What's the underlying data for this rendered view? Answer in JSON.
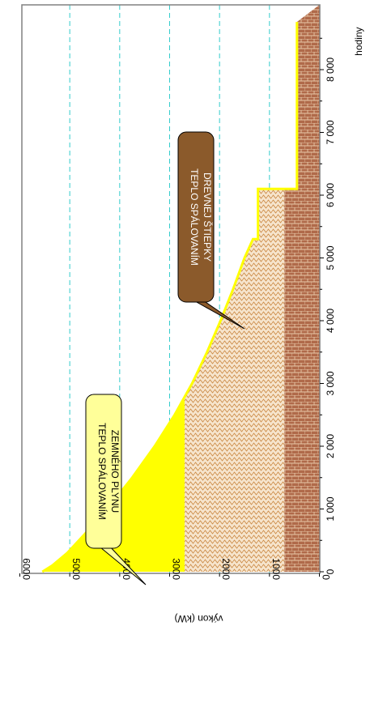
{
  "chart_data": {
    "type": "area",
    "orientation": "rotated-90",
    "xlabel": "hodiny",
    "ylabel": "výkon (kW)",
    "xlim": [
      0,
      8760
    ],
    "ylim": [
      0,
      6000
    ],
    "x_ticks": [
      "0",
      "1 000",
      "2 000",
      "3 000",
      "4 000",
      "5 000",
      "6 000",
      "7 000",
      "8 000"
    ],
    "y_ticks": [
      "0",
      "1000",
      "2000",
      "3000",
      "4000",
      "5000",
      "6000"
    ],
    "y_tick_values": [
      0,
      1000,
      2000,
      3000,
      4000,
      5000,
      6000
    ],
    "x_tick_values": [
      0,
      1000,
      2000,
      3000,
      4000,
      5000,
      6000,
      7000,
      8000
    ],
    "grid": "dashed horizontal at y ticks",
    "duration_curve": {
      "x": [
        0,
        100,
        300,
        600,
        1000,
        1500,
        2000,
        2500,
        3000,
        3500,
        4000,
        4500,
        5000,
        5300,
        5300,
        6100,
        6100,
        8760
      ],
      "y": [
        5550,
        5350,
        5050,
        4700,
        4250,
        3750,
        3300,
        2900,
        2550,
        2250,
        1980,
        1730,
        1500,
        1330,
        1230,
        1230,
        450,
        450
      ]
    },
    "series": [
      {
        "name": "TEPLO SPÁLOVANÍM ZEMNÉHO PLYNU",
        "color": "#ffff00",
        "band": [
          2700,
          null
        ]
      },
      {
        "name": "TEPLO SPÁLOVANÍM DREVNEJ ŠTIEPKY",
        "color": "#f2dcc4",
        "band": [
          700,
          2700
        ]
      },
      {
        "name": "",
        "color": "#a0522d",
        "band": [
          0,
          700
        ]
      }
    ],
    "annotations": [
      {
        "lines": [
          "TEPLO SPÁLOVANÍM",
          "ZEMNÉHO PLYNU"
        ],
        "bg": "#ffff99",
        "text_color": "#000000"
      },
      {
        "lines": [
          "TEPLO SPÁLOVANÍM",
          "DREVNEJ ŠTIEPKY"
        ],
        "bg": "#8b5a2b",
        "text_color": "#ffffff"
      }
    ],
    "colors": {
      "curve": "#ffff00",
      "grid": "#33cccc",
      "axis": "#808080"
    }
  }
}
